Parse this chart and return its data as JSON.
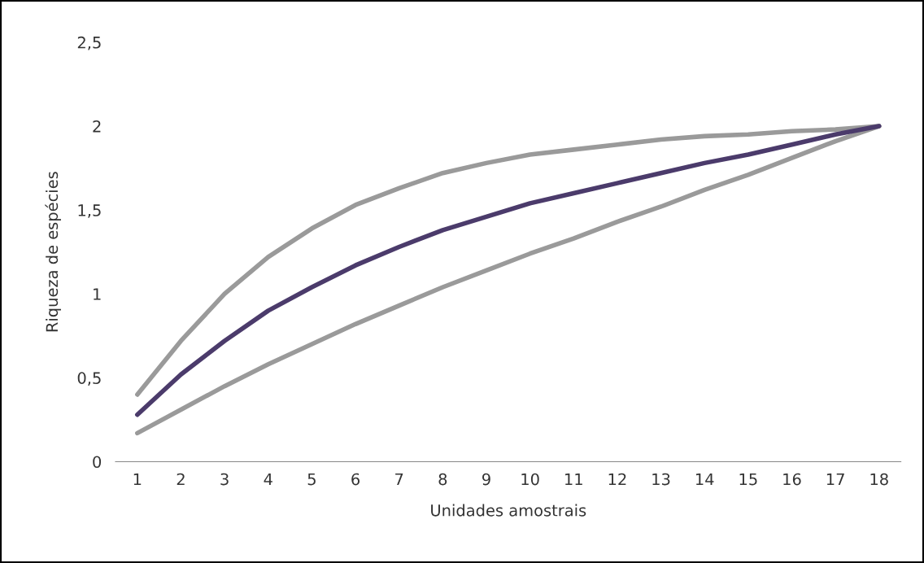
{
  "chart_data": {
    "type": "line",
    "xlabel": "Unidades amostrais",
    "ylabel": "Riqueza de espécies",
    "categories": [
      "1",
      "2",
      "3",
      "4",
      "5",
      "6",
      "7",
      "8",
      "9",
      "10",
      "11",
      "12",
      "13",
      "14",
      "15",
      "16",
      "17",
      "18"
    ],
    "series": [
      {
        "color": "#9a9a9a",
        "values": [
          0.4,
          0.72,
          1.0,
          1.22,
          1.39,
          1.53,
          1.63,
          1.72,
          1.78,
          1.83,
          1.86,
          1.89,
          1.92,
          1.94,
          1.95,
          1.97,
          1.98,
          2.0
        ]
      },
      {
        "color": "#9a9a9a",
        "values": [
          0.17,
          0.31,
          0.45,
          0.58,
          0.7,
          0.82,
          0.93,
          1.04,
          1.14,
          1.24,
          1.33,
          1.43,
          1.52,
          1.62,
          1.71,
          1.81,
          1.91,
          2.0
        ]
      },
      {
        "color": "#4b3b6b",
        "values": [
          0.28,
          0.52,
          0.72,
          0.9,
          1.04,
          1.17,
          1.28,
          1.38,
          1.46,
          1.54,
          1.6,
          1.66,
          1.72,
          1.78,
          1.83,
          1.89,
          1.95,
          2.0
        ]
      }
    ],
    "ylim": [
      0,
      2.5
    ],
    "yticks": [
      0,
      {
        "value": 0.5,
        "label": "0,5"
      },
      1,
      {
        "value": 1.5,
        "label": "1,5"
      },
      2,
      {
        "value": 2.5,
        "label": "2,5"
      }
    ],
    "grid": false,
    "legend": false,
    "marker": "none",
    "line_style": "solid"
  }
}
